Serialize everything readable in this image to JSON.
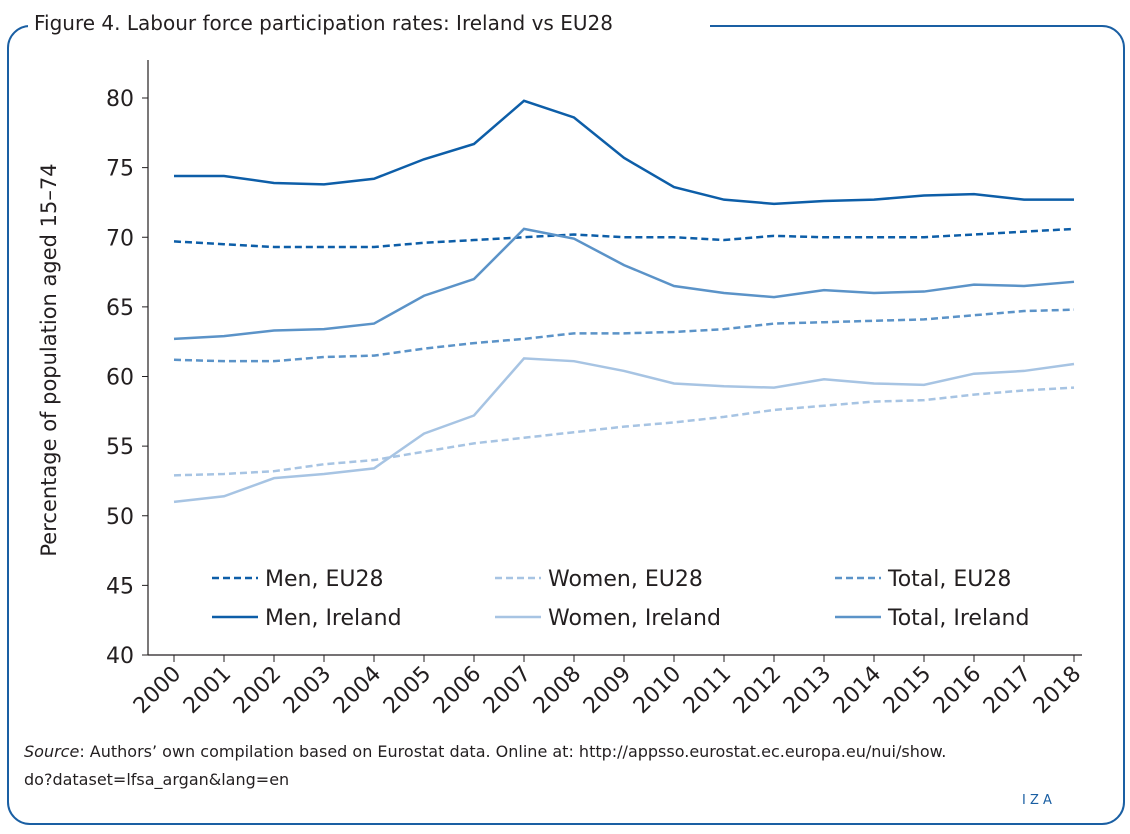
{
  "chart_data": {
    "type": "line",
    "title": "Figure 4. Labour force participation rates: Ireland vs EU28",
    "y_label": "Percentage of population aged 15–74",
    "categories": [
      "2000",
      "2001",
      "2002",
      "2003",
      "2004",
      "2005",
      "2006",
      "2007",
      "2008",
      "2009",
      "2010",
      "2011",
      "2012",
      "2013",
      "2014",
      "2015",
      "2016",
      "2017",
      "2018"
    ],
    "ylim": [
      40,
      80
    ],
    "yticks": [
      40,
      45,
      50,
      55,
      60,
      65,
      70,
      75,
      80
    ],
    "series": [
      {
        "name": "Men, EU28",
        "color": "#0d5ea8",
        "dash": true,
        "values": [
          69.7,
          69.5,
          69.3,
          69.3,
          69.3,
          69.6,
          69.8,
          70.0,
          70.2,
          70.0,
          70.0,
          69.8,
          70.1,
          70.0,
          70.0,
          70.0,
          70.2,
          70.4,
          70.6
        ]
      },
      {
        "name": "Women, EU28",
        "color": "#a7c4e3",
        "dash": true,
        "values": [
          52.9,
          53.0,
          53.2,
          53.7,
          54.0,
          54.6,
          55.2,
          55.6,
          56.0,
          56.4,
          56.7,
          57.1,
          57.6,
          57.9,
          58.2,
          58.3,
          58.7,
          59.0,
          59.2
        ]
      },
      {
        "name": "Total, EU28",
        "color": "#5b93c8",
        "dash": true,
        "values": [
          61.2,
          61.1,
          61.1,
          61.4,
          61.5,
          62.0,
          62.4,
          62.7,
          63.1,
          63.1,
          63.2,
          63.4,
          63.8,
          63.9,
          64.0,
          64.1,
          64.4,
          64.7,
          64.8
        ]
      },
      {
        "name": "Men, Ireland",
        "color": "#0d5ea8",
        "dash": false,
        "values": [
          74.4,
          74.4,
          73.9,
          73.8,
          74.2,
          75.6,
          76.7,
          79.8,
          78.6,
          75.7,
          73.6,
          72.7,
          72.4,
          72.6,
          72.7,
          73.0,
          73.1,
          72.7,
          72.7
        ]
      },
      {
        "name": "Women, Ireland",
        "color": "#a7c4e3",
        "dash": false,
        "values": [
          51.0,
          51.4,
          52.7,
          53.0,
          53.4,
          55.9,
          57.2,
          61.3,
          61.1,
          60.4,
          59.5,
          59.3,
          59.2,
          59.8,
          59.5,
          59.4,
          60.2,
          60.4,
          60.9
        ]
      },
      {
        "name": "Total, Ireland",
        "color": "#5b93c8",
        "dash": false,
        "values": [
          62.7,
          62.9,
          63.3,
          63.4,
          63.8,
          65.8,
          67.0,
          70.6,
          69.9,
          68.0,
          66.5,
          66.0,
          65.7,
          66.2,
          66.0,
          66.1,
          66.6,
          66.5,
          66.8
        ]
      }
    ],
    "source_label": "Source",
    "source_lines": [
      ": Authors’ own compilation based on Eurostat data. Online at: http://appsso.eurostat.ec.europa.eu/nui/show.",
      "do?dataset=lfsa_argan&lang=en"
    ],
    "logo": "I Z A"
  }
}
